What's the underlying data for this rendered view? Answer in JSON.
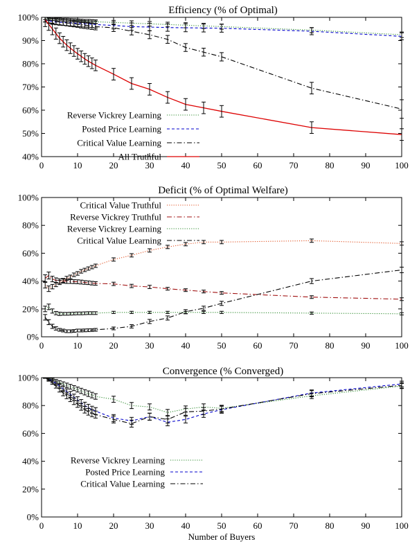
{
  "xlabel": "Number of Buyers",
  "chart_data": [
    {
      "type": "line",
      "title": "Efficiency (% of Optimal)",
      "xlabel": "",
      "ylabel": "",
      "xlim": [
        0,
        100
      ],
      "ylim": [
        40,
        100
      ],
      "xticks": [
        "0",
        "10",
        "20",
        "30",
        "40",
        "50",
        "60",
        "70",
        "80",
        "90",
        "100"
      ],
      "yticks": [
        "40%",
        "50%",
        "60%",
        "70%",
        "80%",
        "90%",
        "100%"
      ],
      "legend": "bottom-left",
      "grid": false,
      "error_bars": true,
      "series": [
        {
          "name": "Reverse Vickrey Learning",
          "color": "#2e8b2e",
          "dash": "dotted",
          "x": [
            1,
            2,
            3,
            4,
            5,
            6,
            7,
            8,
            9,
            10,
            11,
            12,
            13,
            14,
            15,
            20,
            25,
            30,
            35,
            40,
            45,
            50,
            75,
            100
          ],
          "y": [
            99.5,
            99.4,
            99.3,
            99.2,
            99.1,
            99.0,
            98.9,
            98.8,
            98.7,
            98.6,
            98.5,
            98.4,
            98.3,
            98.2,
            98.1,
            97.8,
            97.5,
            97.2,
            96.9,
            96.6,
            96.3,
            96.0,
            94.5,
            92.5
          ],
          "err": [
            0.5,
            0.5,
            0.6,
            0.6,
            0.6,
            0.6,
            0.7,
            0.7,
            0.7,
            0.7,
            0.7,
            0.7,
            0.8,
            0.8,
            0.8,
            0.9,
            1.0,
            1.0,
            1.0,
            1.1,
            1.1,
            1.1,
            1.1,
            1.2
          ]
        },
        {
          "name": "Posted Price Learning",
          "color": "#0000cc",
          "dash": "dashed",
          "x": [
            1,
            2,
            3,
            4,
            5,
            6,
            7,
            8,
            9,
            10,
            11,
            12,
            13,
            14,
            15,
            20,
            25,
            30,
            35,
            40,
            45,
            50,
            75,
            100
          ],
          "y": [
            99.0,
            98.5,
            98.2,
            98.0,
            97.9,
            97.8,
            97.7,
            97.6,
            97.5,
            97.4,
            97.3,
            97.2,
            97.1,
            97.0,
            96.9,
            96.5,
            96.0,
            95.8,
            95.6,
            95.5,
            95.4,
            95.3,
            94.0,
            91.8
          ],
          "err": [
            1.0,
            1.1,
            1.2,
            1.2,
            1.3,
            1.3,
            1.3,
            1.3,
            1.3,
            1.4,
            1.4,
            1.4,
            1.4,
            1.4,
            1.5,
            1.5,
            1.6,
            1.6,
            1.6,
            1.7,
            1.7,
            1.7,
            1.5,
            1.5
          ]
        },
        {
          "name": "Critical Value Learning",
          "color": "#000000",
          "dash": "dashdot",
          "x": [
            1,
            2,
            3,
            4,
            5,
            6,
            7,
            8,
            9,
            10,
            11,
            12,
            13,
            14,
            15,
            20,
            25,
            30,
            35,
            40,
            45,
            50,
            75,
            100
          ],
          "y": [
            99.0,
            98.7,
            98.4,
            98.2,
            98.0,
            97.8,
            97.6,
            97.4,
            97.2,
            97.0,
            96.8,
            96.6,
            96.4,
            96.2,
            96.0,
            95.5,
            94.0,
            92.5,
            90.5,
            87.0,
            85.0,
            83.0,
            69.5,
            60.5
          ],
          "err": [
            1.0,
            1.1,
            1.1,
            1.2,
            1.2,
            1.2,
            1.3,
            1.3,
            1.3,
            1.3,
            1.4,
            1.4,
            1.4,
            1.4,
            1.4,
            1.6,
            1.6,
            1.7,
            1.7,
            1.7,
            1.7,
            1.8,
            2.5,
            4.0
          ]
        },
        {
          "name": "All Truthful",
          "color": "#dd0000",
          "dash": "solid",
          "x": [
            1,
            2,
            3,
            4,
            5,
            6,
            7,
            8,
            9,
            10,
            11,
            12,
            13,
            14,
            15,
            20,
            25,
            30,
            35,
            40,
            45,
            50,
            75,
            100
          ],
          "y": [
            99.0,
            97.0,
            95.0,
            93.0,
            91.0,
            89.5,
            88.0,
            86.7,
            85.5,
            84.3,
            83.2,
            82.1,
            81.1,
            80.2,
            79.3,
            75.5,
            71.5,
            69.0,
            65.5,
            62.5,
            61.0,
            59.5,
            52.5,
            49.5
          ],
          "err": [
            3.0,
            2.6,
            2.5,
            2.4,
            2.3,
            2.3,
            2.3,
            2.3,
            2.3,
            2.3,
            2.3,
            2.3,
            2.3,
            2.3,
            2.3,
            2.5,
            2.5,
            2.5,
            2.5,
            2.5,
            2.5,
            2.5,
            2.5,
            2.5
          ]
        }
      ]
    },
    {
      "type": "line",
      "title": "Deficit (% of Optimal Welfare)",
      "xlabel": "",
      "ylabel": "",
      "xlim": [
        0,
        100
      ],
      "ylim": [
        0,
        100
      ],
      "xticks": [
        "0",
        "10",
        "20",
        "30",
        "40",
        "50",
        "60",
        "70",
        "80",
        "90",
        "100"
      ],
      "yticks": [
        "0%",
        "20%",
        "40%",
        "60%",
        "80%",
        "100%"
      ],
      "legend": "top-left",
      "grid": false,
      "error_bars": true,
      "series": [
        {
          "name": "Critical Value Truthful",
          "color": "#e05020",
          "dash": "dotted",
          "x": [
            1,
            2,
            3,
            4,
            5,
            6,
            7,
            8,
            9,
            10,
            11,
            12,
            13,
            14,
            15,
            20,
            25,
            30,
            35,
            40,
            45,
            50,
            75,
            100
          ],
          "y": [
            37.0,
            34.5,
            36.0,
            37.5,
            39.0,
            40.5,
            42.0,
            43.0,
            44.5,
            45.5,
            47.0,
            48.0,
            49.0,
            50.0,
            51.0,
            55.5,
            58.5,
            62.0,
            64.5,
            66.5,
            68.0,
            68.0,
            69.0,
            67.0
          ],
          "err": [
            2.0,
            2.0,
            1.6,
            1.5,
            1.5,
            1.4,
            1.4,
            1.3,
            1.3,
            1.3,
            1.3,
            1.2,
            1.2,
            1.2,
            1.2,
            1.2,
            1.2,
            1.2,
            1.2,
            1.2,
            1.2,
            1.2,
            1.2,
            1.2
          ]
        },
        {
          "name": "Reverse Vickrey Truthful",
          "color": "#a01010",
          "dash": "dashdot",
          "x": [
            1,
            2,
            3,
            4,
            5,
            6,
            7,
            8,
            9,
            10,
            11,
            12,
            13,
            14,
            15,
            20,
            25,
            30,
            35,
            40,
            45,
            50,
            75,
            100
          ],
          "y": [
            42.0,
            44.0,
            41.5,
            40.5,
            40.0,
            40.0,
            39.8,
            39.7,
            39.6,
            39.5,
            39.3,
            39.0,
            38.8,
            38.5,
            38.3,
            38.0,
            36.5,
            35.8,
            34.5,
            33.5,
            32.5,
            31.5,
            28.5,
            27.0
          ],
          "err": [
            2.5,
            2.5,
            2.0,
            1.8,
            1.6,
            1.5,
            1.5,
            1.4,
            1.4,
            1.4,
            1.4,
            1.3,
            1.3,
            1.3,
            1.3,
            1.2,
            1.2,
            1.2,
            1.0,
            1.0,
            1.0,
            1.0,
            1.0,
            1.0
          ]
        },
        {
          "name": "Reverse Vickrey Learning",
          "color": "#2e8b2e",
          "dash": "dotted",
          "x": [
            1,
            2,
            3,
            4,
            5,
            6,
            7,
            8,
            9,
            10,
            11,
            12,
            13,
            14,
            15,
            20,
            25,
            30,
            35,
            40,
            45,
            50,
            75,
            100
          ],
          "y": [
            20.0,
            21.5,
            18.5,
            17.0,
            16.5,
            16.5,
            16.5,
            16.6,
            16.7,
            16.8,
            16.8,
            16.9,
            17.0,
            17.0,
            17.0,
            17.5,
            17.5,
            17.5,
            17.5,
            17.5,
            17.5,
            17.5,
            17.0,
            16.5
          ],
          "err": [
            2.0,
            2.0,
            1.5,
            1.2,
            1.2,
            1.0,
            1.0,
            1.0,
            1.0,
            1.0,
            1.0,
            1.0,
            1.0,
            1.0,
            1.0,
            0.8,
            0.8,
            0.8,
            0.8,
            0.8,
            0.8,
            0.8,
            0.8,
            0.8
          ]
        },
        {
          "name": "Critical Value Learning",
          "color": "#000000",
          "dash": "dashdot",
          "x": [
            1,
            2,
            3,
            4,
            5,
            6,
            7,
            8,
            9,
            10,
            11,
            12,
            13,
            14,
            15,
            20,
            25,
            30,
            35,
            40,
            45,
            50,
            75,
            100
          ],
          "y": [
            14.0,
            10.5,
            7.5,
            6.0,
            5.0,
            4.5,
            4.0,
            4.0,
            4.2,
            4.5,
            4.5,
            4.6,
            4.7,
            4.8,
            5.0,
            6.0,
            7.5,
            11.0,
            13.5,
            18.0,
            20.5,
            24.0,
            40.0,
            48.0
          ],
          "err": [
            2.0,
            1.8,
            1.5,
            1.2,
            1.0,
            1.0,
            1.0,
            1.0,
            1.0,
            1.0,
            1.0,
            1.0,
            1.0,
            1.0,
            1.0,
            1.0,
            1.2,
            1.5,
            1.5,
            1.5,
            1.5,
            1.5,
            1.8,
            2.0
          ]
        }
      ]
    },
    {
      "type": "line",
      "title": "Convergence (% Converged)",
      "xlabel": "Number of Buyers",
      "ylabel": "",
      "xlim": [
        0,
        100
      ],
      "ylim": [
        0,
        100
      ],
      "xticks": [
        "0",
        "10",
        "20",
        "30",
        "40",
        "50",
        "60",
        "70",
        "80",
        "90",
        "100"
      ],
      "yticks": [
        "0%",
        "20%",
        "40%",
        "60%",
        "80%",
        "100%"
      ],
      "legend": "middle-left",
      "grid": false,
      "error_bars": true,
      "series": [
        {
          "name": "Reverse Vickrey Learning",
          "color": "#2e8b2e",
          "dash": "dotted",
          "x": [
            1,
            2,
            3,
            4,
            5,
            6,
            7,
            8,
            9,
            10,
            11,
            12,
            13,
            14,
            15,
            20,
            25,
            30,
            35,
            40,
            45,
            50,
            75,
            100
          ],
          "y": [
            100.0,
            99.5,
            98.5,
            97.5,
            96.5,
            95.5,
            94.5,
            93.5,
            92.5,
            91.5,
            90.5,
            89.5,
            88.5,
            87.5,
            86.5,
            84.5,
            80.0,
            79.0,
            75.0,
            77.5,
            79.0,
            78.0,
            87.0,
            94.0
          ],
          "err": [
            0.5,
            0.8,
            1.0,
            1.2,
            1.4,
            1.5,
            1.6,
            1.7,
            1.8,
            1.8,
            1.9,
            1.9,
            2.0,
            2.0,
            2.0,
            2.2,
            2.2,
            2.2,
            2.2,
            2.2,
            2.2,
            2.2,
            2.0,
            1.8
          ]
        },
        {
          "name": "Posted Price Learning",
          "color": "#0000cc",
          "dash": "dashed",
          "x": [
            1,
            2,
            3,
            4,
            5,
            6,
            7,
            8,
            9,
            10,
            11,
            12,
            13,
            14,
            15,
            20,
            25,
            30,
            35,
            40,
            45,
            50,
            75,
            100
          ],
          "y": [
            100.0,
            99.0,
            97.5,
            96.0,
            94.0,
            92.0,
            90.0,
            88.0,
            86.0,
            84.0,
            82.0,
            80.0,
            78.5,
            77.0,
            76.0,
            71.0,
            69.0,
            72.0,
            68.0,
            70.0,
            74.0,
            77.0,
            89.0,
            95.5
          ],
          "err": [
            0.5,
            1.0,
            1.2,
            1.5,
            1.7,
            1.9,
            2.0,
            2.1,
            2.2,
            2.3,
            2.3,
            2.4,
            2.4,
            2.5,
            2.5,
            2.5,
            2.5,
            2.5,
            2.5,
            2.5,
            2.5,
            2.5,
            2.2,
            2.0
          ]
        },
        {
          "name": "Critical Value Learning",
          "color": "#000000",
          "dash": "dashdot",
          "x": [
            1,
            2,
            3,
            4,
            5,
            6,
            7,
            8,
            9,
            10,
            11,
            12,
            13,
            14,
            15,
            20,
            25,
            30,
            35,
            40,
            45,
            50,
            75,
            100
          ],
          "y": [
            100.0,
            98.5,
            96.5,
            94.0,
            91.5,
            89.0,
            87.0,
            85.0,
            83.0,
            81.0,
            79.0,
            77.0,
            75.5,
            74.5,
            73.5,
            70.0,
            67.0,
            72.0,
            70.0,
            75.5,
            76.0,
            77.5,
            88.5,
            94.5
          ],
          "err": [
            0.5,
            1.0,
            1.3,
            1.5,
            1.8,
            2.0,
            2.1,
            2.2,
            2.3,
            2.3,
            2.4,
            2.4,
            2.4,
            2.5,
            2.5,
            2.5,
            2.5,
            2.5,
            2.5,
            2.5,
            2.5,
            2.5,
            2.2,
            2.0
          ]
        }
      ]
    }
  ]
}
